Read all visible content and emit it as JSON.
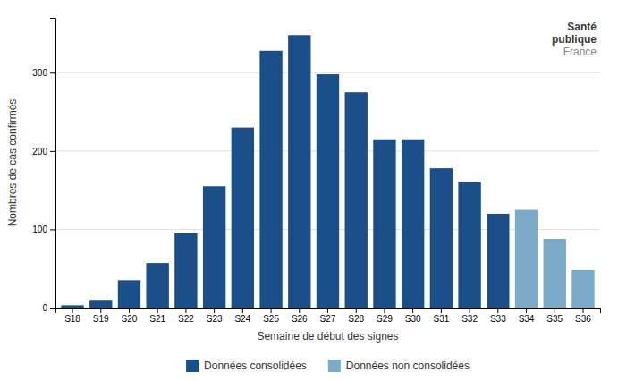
{
  "chart_data": {
    "type": "bar",
    "x_label": "Semaine de début des signes",
    "y_label": "Nombres de cas confirmés",
    "categories": [
      "S18",
      "S19",
      "S20",
      "S21",
      "S22",
      "S23",
      "S24",
      "S25",
      "S26",
      "S27",
      "S28",
      "S29",
      "S30",
      "S31",
      "S32",
      "S33",
      "S34",
      "S35",
      "S36"
    ],
    "series": [
      {
        "name": "Données consolidées",
        "color": "#1b4f8a",
        "values": [
          3,
          10,
          35,
          57,
          95,
          155,
          230,
          328,
          348,
          298,
          275,
          215,
          215,
          178,
          160,
          120,
          null,
          null,
          null
        ]
      },
      {
        "name": "Données non consolidées",
        "color": "#7aaac8",
        "values": [
          null,
          null,
          null,
          null,
          null,
          null,
          null,
          null,
          null,
          null,
          null,
          null,
          null,
          null,
          null,
          null,
          125,
          88,
          48
        ]
      }
    ],
    "stacked": true,
    "ylim": [
      0,
      370
    ],
    "yticks": [
      0,
      100,
      200,
      300
    ],
    "grid": true,
    "legend": "bottom",
    "annotations": [
      "Santé",
      "publique",
      "France"
    ]
  }
}
